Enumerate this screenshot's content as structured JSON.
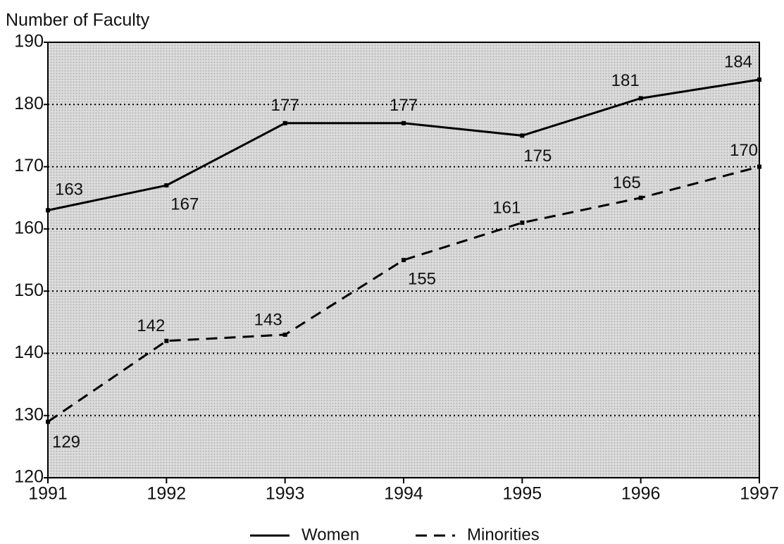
{
  "chart_data": {
    "type": "line",
    "ylabel": "Number of Faculty",
    "x": [
      1991,
      1992,
      1993,
      1994,
      1995,
      1996,
      1997
    ],
    "xlim": [
      1991,
      1997
    ],
    "xticks": [
      1991,
      1992,
      1993,
      1994,
      1995,
      1996,
      1997
    ],
    "ylim": [
      120,
      190
    ],
    "yticks": [
      120,
      130,
      140,
      150,
      160,
      170,
      180,
      190
    ],
    "grid": true,
    "legend": "bottom",
    "series": [
      {
        "name": "Women",
        "color": "#000000",
        "line_style": "solid",
        "values": [
          163,
          167,
          177,
          177,
          175,
          181,
          184
        ]
      },
      {
        "name": "Minorities",
        "color": "#000000",
        "line_style": "dashed",
        "values": [
          129,
          142,
          143,
          155,
          161,
          165,
          170
        ]
      }
    ]
  }
}
